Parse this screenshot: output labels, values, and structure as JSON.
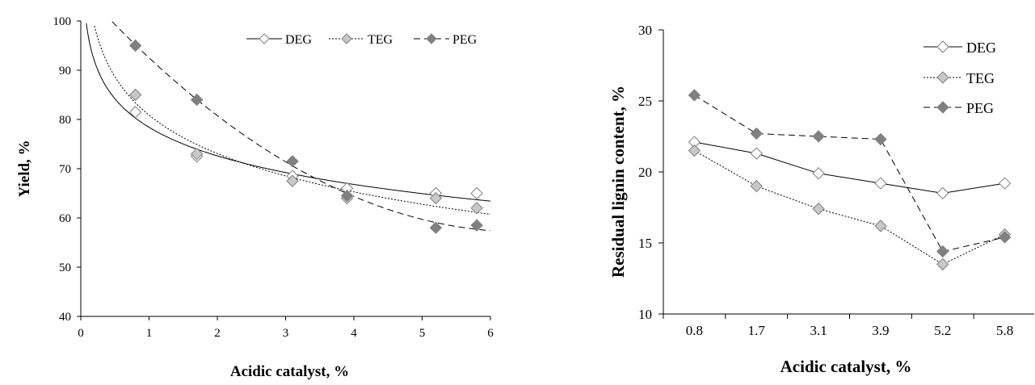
{
  "chart_data": [
    {
      "type": "scatter",
      "title": "",
      "xlabel": "Acidic catalyst, %",
      "ylabel": "Yield, %",
      "xlim": [
        0,
        6
      ],
      "ylim": [
        40,
        100
      ],
      "xticks": [
        "0",
        "1",
        "2",
        "3",
        "4",
        "5",
        "6"
      ],
      "yticks": [
        "40",
        "50",
        "60",
        "70",
        "80",
        "90",
        "100"
      ],
      "grid": false,
      "legend_position": "top-right",
      "x": [
        0.8,
        1.7,
        3.1,
        3.9,
        5.2,
        5.8
      ],
      "series": [
        {
          "name": "DEG",
          "values": [
            81.5,
            72.5,
            68.5,
            66.0,
            65.0,
            65.0
          ],
          "line": "solid",
          "marker_color": "#ffffff",
          "trend": "log"
        },
        {
          "name": "TEG",
          "values": [
            85.0,
            73.0,
            67.5,
            64.0,
            64.0,
            62.0
          ],
          "line": "dotted",
          "marker_color": "#c8c8c8",
          "trend": "log"
        },
        {
          "name": "PEG",
          "values": [
            95.0,
            84.0,
            71.5,
            64.5,
            58.0,
            58.5
          ],
          "line": "dashed",
          "marker_color": "#808080",
          "trend": "poly"
        }
      ]
    },
    {
      "type": "line",
      "title": "",
      "xlabel": "Acidic catalyst, %",
      "ylabel": "Residual lignin content, %",
      "categories": [
        "0.8",
        "1.7",
        "3.1",
        "3.9",
        "5.2",
        "5.8"
      ],
      "ylim": [
        10,
        30
      ],
      "yticks": [
        "10",
        "15",
        "20",
        "25",
        "30"
      ],
      "grid": false,
      "legend_position": "top-right",
      "series": [
        {
          "name": "DEG",
          "values": [
            22.1,
            21.3,
            19.9,
            19.2,
            18.5,
            19.2
          ],
          "line": "solid",
          "marker_color": "#ffffff"
        },
        {
          "name": "TEG",
          "values": [
            21.5,
            19.0,
            17.4,
            16.2,
            13.5,
            15.6
          ],
          "line": "dotted",
          "marker_color": "#c8c8c8"
        },
        {
          "name": "PEG",
          "values": [
            25.4,
            22.7,
            22.5,
            22.3,
            14.4,
            15.4
          ],
          "line": "dashed",
          "marker_color": "#808080"
        }
      ]
    }
  ]
}
